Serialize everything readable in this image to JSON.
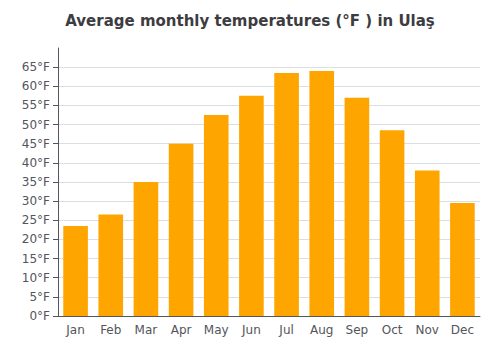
{
  "chart_data": {
    "type": "bar",
    "title": "Average monthly temperatures (°F ) in Ulaş",
    "categories": [
      "Jan",
      "Feb",
      "Mar",
      "Apr",
      "May",
      "Jun",
      "Jul",
      "Aug",
      "Sep",
      "Oct",
      "Nov",
      "Dec"
    ],
    "values": [
      23.5,
      26.5,
      35.0,
      45.0,
      52.5,
      57.5,
      63.5,
      64.0,
      57.0,
      48.5,
      38.0,
      29.5
    ],
    "color": "#FFA500",
    "ylim": [
      0,
      70
    ],
    "yticks": [
      {
        "value": 0,
        "label": "0°F"
      },
      {
        "value": 5,
        "label": "5°F"
      },
      {
        "value": 10,
        "label": "10°F"
      },
      {
        "value": 15,
        "label": "15°F"
      },
      {
        "value": 20,
        "label": "20°F"
      },
      {
        "value": 25,
        "label": "25°F"
      },
      {
        "value": 30,
        "label": "30°F"
      },
      {
        "value": 35,
        "label": "35°F"
      },
      {
        "value": 40,
        "label": "40°F"
      },
      {
        "value": 45,
        "label": "45°F"
      },
      {
        "value": 50,
        "label": "50°F"
      },
      {
        "value": 55,
        "label": "55°F"
      },
      {
        "value": 60,
        "label": "60°F"
      },
      {
        "value": 65,
        "label": "65°F"
      }
    ],
    "grid": true
  }
}
